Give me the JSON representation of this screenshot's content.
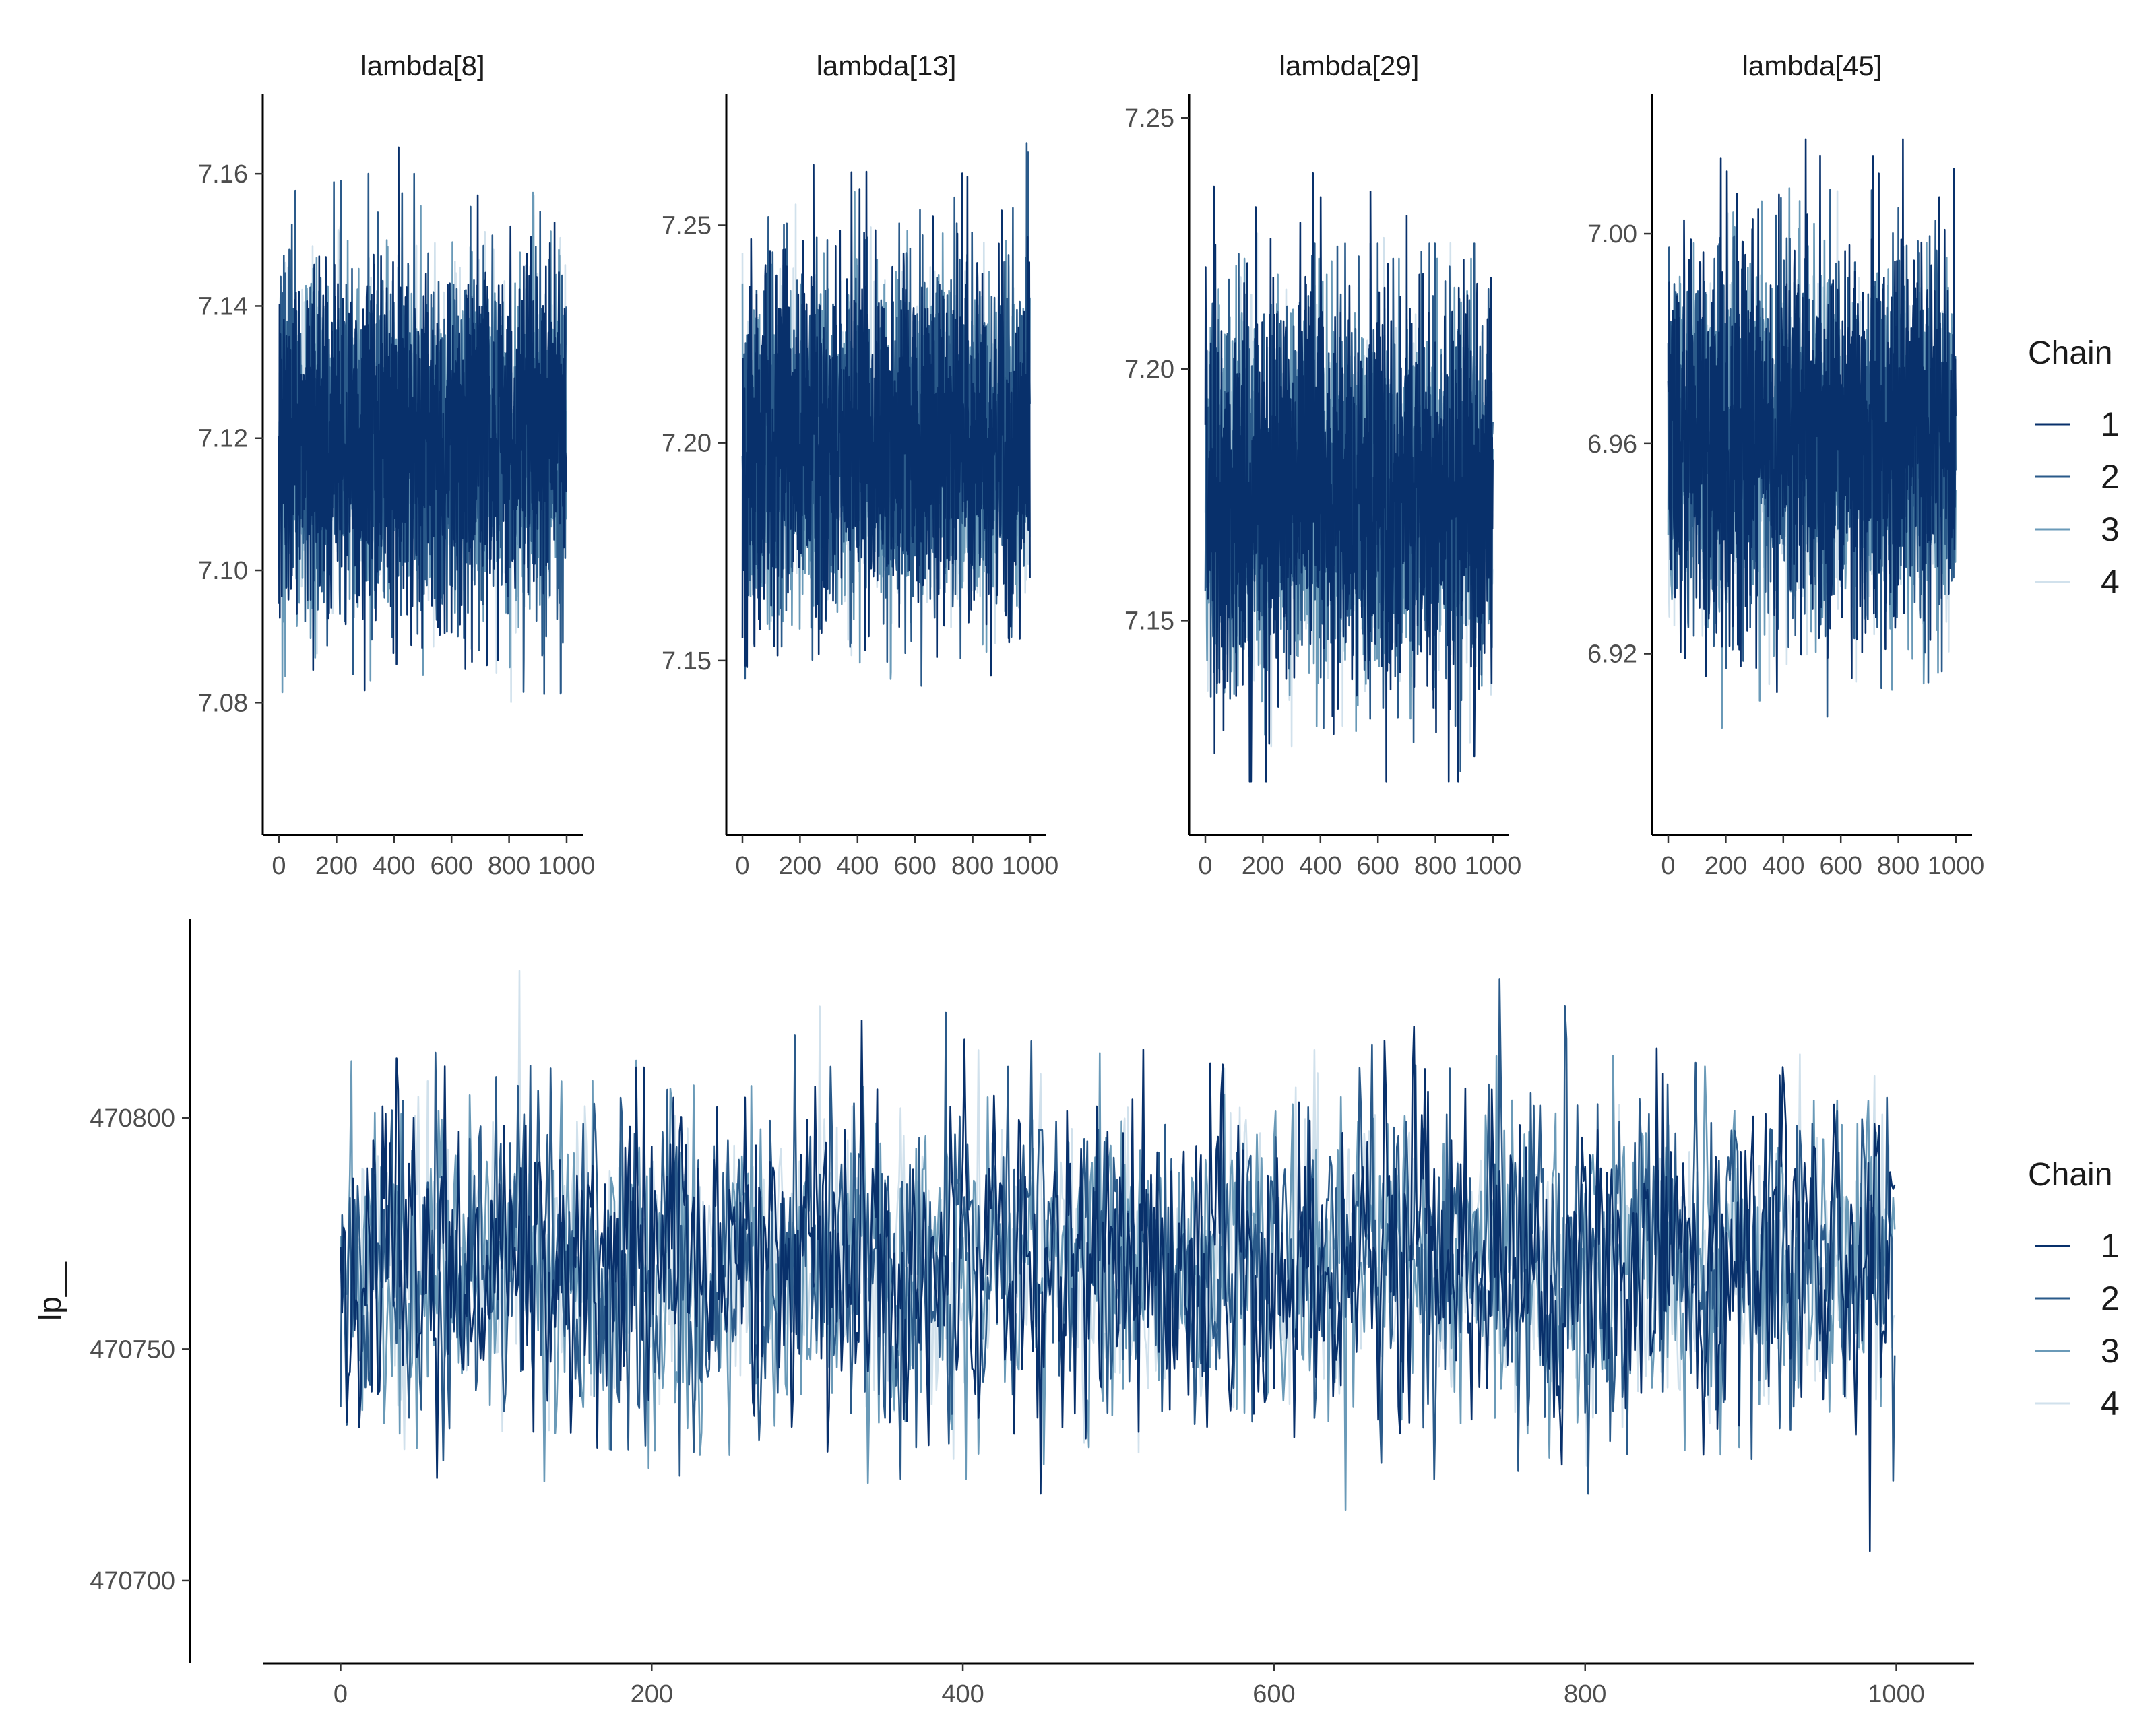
{
  "chart_data": [
    {
      "type": "line",
      "title": "lambda[8]",
      "xlabel": "",
      "ylabel": "",
      "xlim": [
        0,
        1000
      ],
      "ylim": [
        7.062,
        7.17
      ],
      "x_ticks": [
        "0",
        "200",
        "400",
        "600",
        "800",
        "1000"
      ],
      "x_tick_values": [
        0,
        200,
        400,
        600,
        800,
        1000
      ],
      "y_ticks": [
        "7.08",
        "7.10",
        "7.12",
        "7.14",
        "7.16"
      ],
      "y_tick_values": [
        7.08,
        7.1,
        7.12,
        7.14,
        7.16
      ],
      "iterations": 1000,
      "series": [
        {
          "name": "1",
          "color": "#08306b",
          "center": 7.12,
          "sd": 0.013,
          "min": 7.068,
          "max": 7.164
        },
        {
          "name": "2",
          "color": "#2a5a8a",
          "center": 7.12,
          "sd": 0.0125,
          "min": 7.07,
          "max": 7.16
        },
        {
          "name": "3",
          "color": "#6a9ab8",
          "center": 7.12,
          "sd": 0.012,
          "min": 7.074,
          "max": 7.164
        },
        {
          "name": "4",
          "color": "#d1e1ec",
          "center": 7.12,
          "sd": 0.011,
          "min": 7.078,
          "max": 7.158
        }
      ],
      "grid": false,
      "legend": "right"
    },
    {
      "type": "line",
      "title": "lambda[13]",
      "xlabel": "",
      "ylabel": "",
      "xlim": [
        0,
        1000
      ],
      "ylim": [
        7.113,
        7.277
      ],
      "x_ticks": [
        "0",
        "200",
        "400",
        "600",
        "800",
        "1000"
      ],
      "x_tick_values": [
        0,
        200,
        400,
        600,
        800,
        1000
      ],
      "y_ticks": [
        "7.15",
        "7.20",
        "7.25"
      ],
      "y_tick_values": [
        7.15,
        7.2,
        7.25
      ],
      "iterations": 1000,
      "series": [
        {
          "name": "1",
          "color": "#08306b",
          "center": 7.2,
          "sd": 0.02,
          "min": 7.14,
          "max": 7.265
        },
        {
          "name": "2",
          "color": "#2a5a8a",
          "center": 7.2,
          "sd": 0.019,
          "min": 7.118,
          "max": 7.272
        },
        {
          "name": "3",
          "color": "#6a9ab8",
          "center": 7.2,
          "sd": 0.018,
          "min": 7.13,
          "max": 7.262
        },
        {
          "name": "4",
          "color": "#d1e1ec",
          "center": 7.2,
          "sd": 0.0165,
          "min": 7.145,
          "max": 7.255
        }
      ],
      "grid": false,
      "legend": "right"
    },
    {
      "type": "line",
      "title": "lambda[29]",
      "xlabel": "",
      "ylabel": "",
      "xlim": [
        0,
        1000
      ],
      "ylim": [
        7.11,
        7.252
      ],
      "x_ticks": [
        "0",
        "200",
        "400",
        "600",
        "800",
        "1000"
      ],
      "x_tick_values": [
        0,
        200,
        400,
        600,
        800,
        1000
      ],
      "y_ticks": [
        "7.15",
        "7.20",
        "7.25"
      ],
      "y_tick_values": [
        7.15,
        7.2,
        7.25
      ],
      "iterations": 1000,
      "series": [
        {
          "name": "1",
          "color": "#08306b",
          "center": 7.175,
          "sd": 0.019,
          "min": 7.118,
          "max": 7.245
        },
        {
          "name": "2",
          "color": "#2a5a8a",
          "center": 7.175,
          "sd": 0.018,
          "min": 7.12,
          "max": 7.225
        },
        {
          "name": "3",
          "color": "#6a9ab8",
          "center": 7.175,
          "sd": 0.017,
          "min": 7.115,
          "max": 7.222
        },
        {
          "name": "4",
          "color": "#d1e1ec",
          "center": 7.175,
          "sd": 0.0155,
          "min": 7.125,
          "max": 7.227
        }
      ],
      "grid": false,
      "legend": "right"
    },
    {
      "type": "line",
      "title": "lambda[45]",
      "xlabel": "",
      "ylabel": "",
      "xlim": [
        0,
        1000
      ],
      "ylim": [
        6.888,
        7.024
      ],
      "x_ticks": [
        "0",
        "200",
        "400",
        "600",
        "800",
        "1000"
      ],
      "x_tick_values": [
        0,
        200,
        400,
        600,
        800,
        1000
      ],
      "y_ticks": [
        "6.92",
        "6.96",
        "7.00"
      ],
      "y_tick_values": [
        6.92,
        6.96,
        7.0
      ],
      "iterations": 1000,
      "series": [
        {
          "name": "1",
          "color": "#08306b",
          "center": 6.96,
          "sd": 0.0175,
          "min": 6.905,
          "max": 7.018
        },
        {
          "name": "2",
          "color": "#2a5a8a",
          "center": 6.96,
          "sd": 0.0165,
          "min": 6.908,
          "max": 7.015
        },
        {
          "name": "3",
          "color": "#6a9ab8",
          "center": 6.96,
          "sd": 0.016,
          "min": 6.902,
          "max": 7.014
        },
        {
          "name": "4",
          "color": "#d1e1ec",
          "center": 6.96,
          "sd": 0.015,
          "min": 6.895,
          "max": 7.016
        }
      ],
      "grid": false,
      "legend": "right"
    },
    {
      "type": "line",
      "title": "",
      "xlabel": "",
      "ylabel": "lp__",
      "xlim": [
        -50,
        1050
      ],
      "ylim": [
        6.92,
        7.02
      ],
      "x_ticks": [
        "0",
        "200",
        "400",
        "600",
        "800",
        "1000"
      ],
      "x_tick_values": [
        0,
        200,
        400,
        600,
        800,
        1000
      ],
      "y_ticks": [
        "470700",
        "470750",
        "470800"
      ],
      "y_tick_values": [
        470700,
        470750,
        470800
      ],
      "y_range": [
        470685,
        470840
      ],
      "iterations": 1000,
      "series": [
        {
          "name": "1",
          "color": "#08306b",
          "center": 470768,
          "sd": 18,
          "min": 470696,
          "max": 470838
        },
        {
          "name": "2",
          "color": "#2a5a8a",
          "center": 470768,
          "sd": 18,
          "min": 470705,
          "max": 470836
        },
        {
          "name": "3",
          "color": "#6a9ab8",
          "center": 470768,
          "sd": 17,
          "min": 470702,
          "max": 470830
        },
        {
          "name": "4",
          "color": "#d1e1ec",
          "center": 470768,
          "sd": 16,
          "min": 470697,
          "max": 470838
        }
      ],
      "grid": false,
      "legend": "right"
    }
  ],
  "legends": [
    {
      "title": "Chain",
      "items": [
        {
          "label": "1",
          "color": "#08306b"
        },
        {
          "label": "2",
          "color": "#2a5a8a"
        },
        {
          "label": "3",
          "color": "#6a9ab8"
        },
        {
          "label": "4",
          "color": "#d1e1ec"
        }
      ]
    },
    {
      "title": "Chain",
      "items": [
        {
          "label": "1",
          "color": "#08306b"
        },
        {
          "label": "2",
          "color": "#2a5a8a"
        },
        {
          "label": "3",
          "color": "#6a9ab8"
        },
        {
          "label": "4",
          "color": "#d1e1ec"
        }
      ]
    }
  ]
}
